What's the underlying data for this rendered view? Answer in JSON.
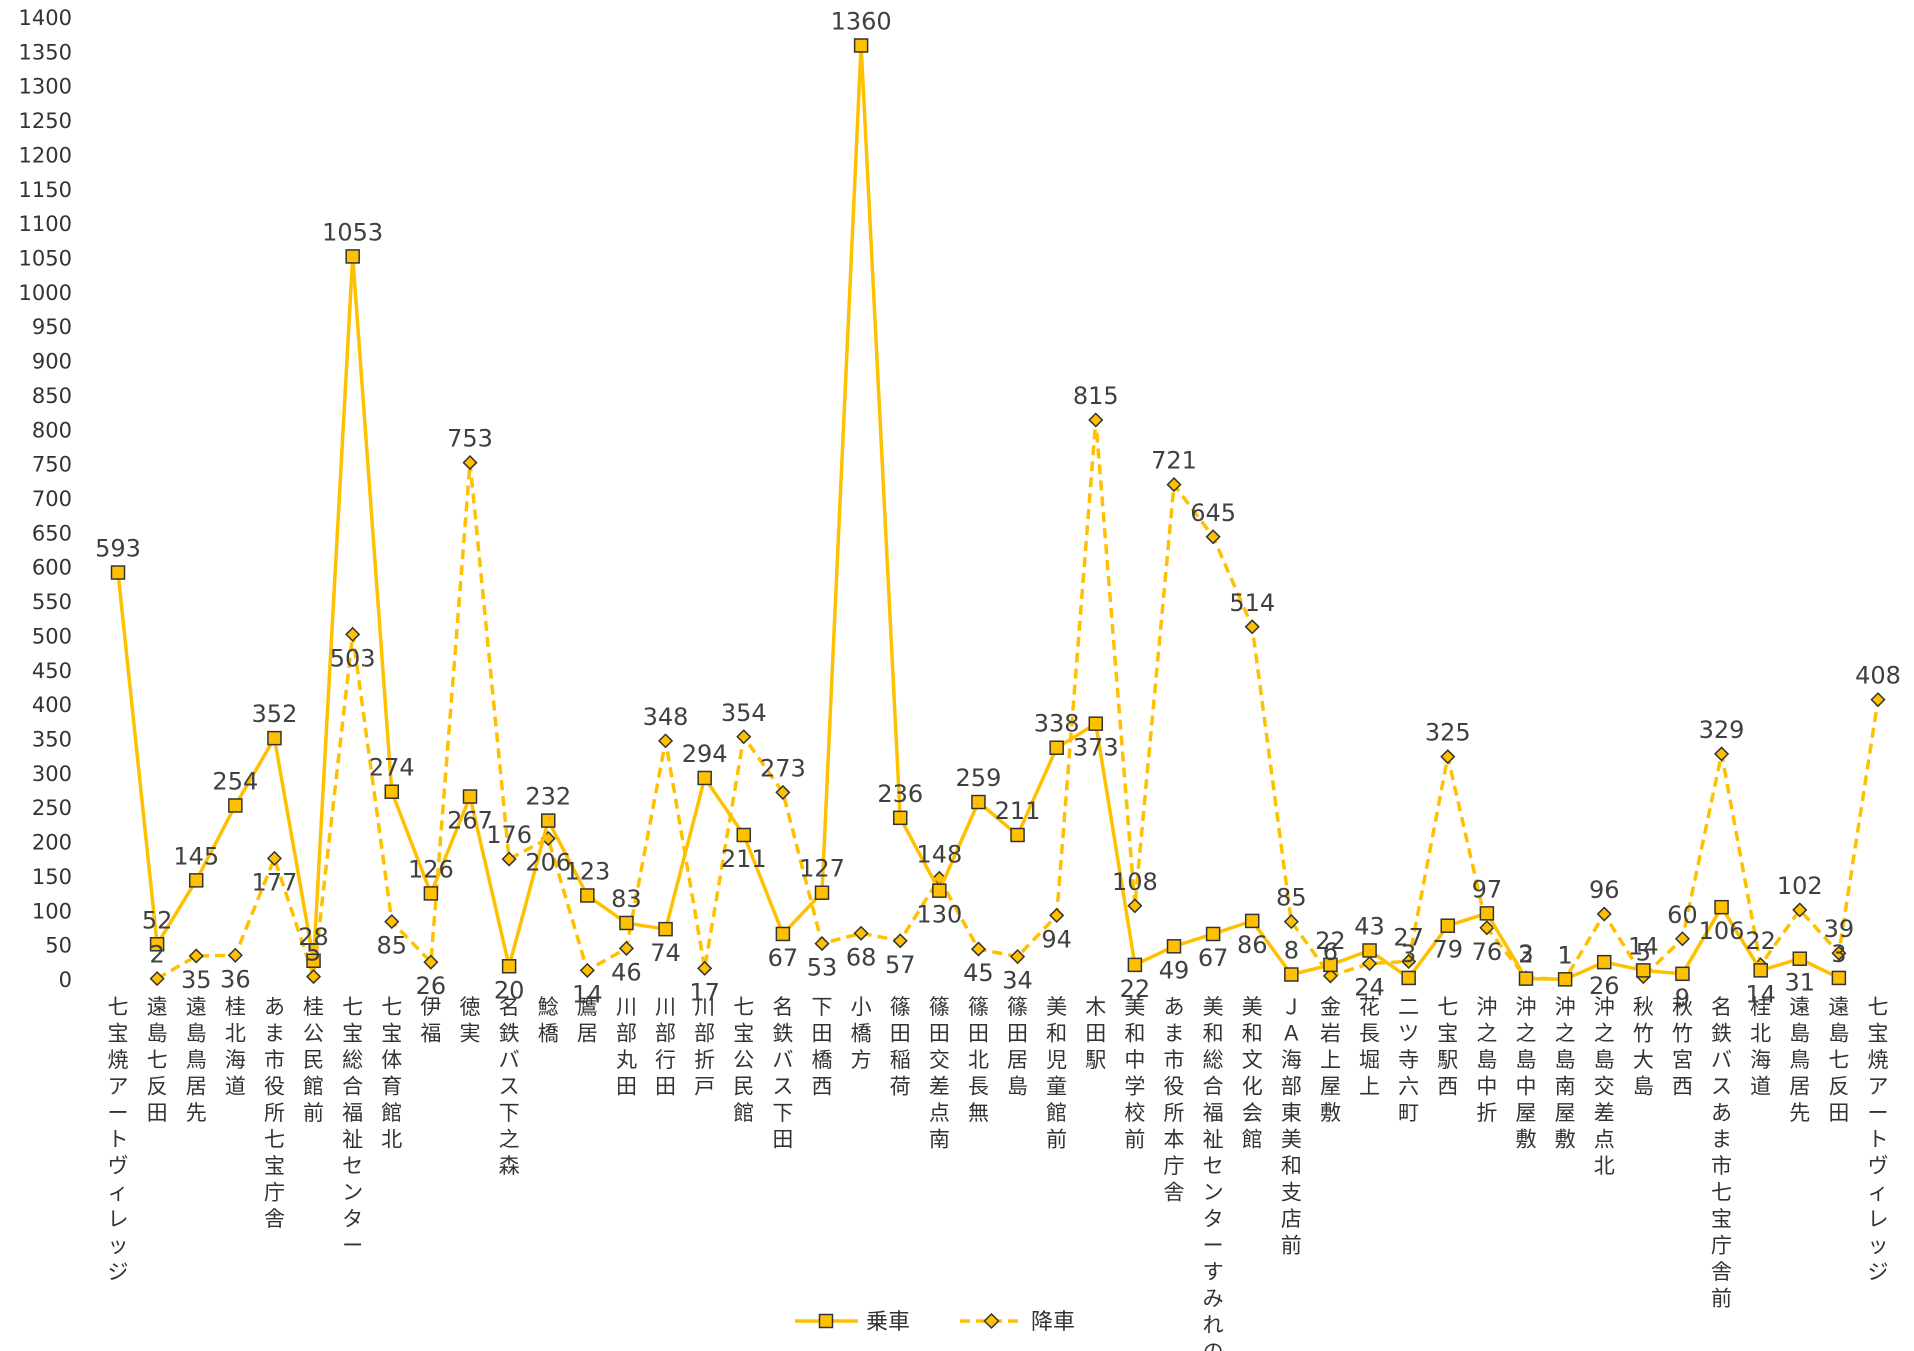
{
  "chart_data": {
    "type": "line",
    "title": "",
    "xlabel": "",
    "ylabel": "",
    "ylim": [
      0,
      1400
    ],
    "ytick_step": 50,
    "grid": false,
    "legend_position": "bottom",
    "categories": [
      "七宝焼アートヴィレッジ",
      "遠島七反田",
      "遠島鳥居先",
      "桂北海道",
      "あま市役所七宝庁舎",
      "桂公民館前",
      "七宝総合福祉センター",
      "七宝体育館北",
      "伊福",
      "徳実",
      "名鉄バス下之森",
      "鯰橋",
      "鷹居",
      "川部丸田",
      "川部行田",
      "川部折戸",
      "七宝公民館",
      "名鉄バス下田",
      "下田橋西",
      "小橋方",
      "篠田稲荷",
      "篠田交差点南",
      "篠田北長無",
      "篠田居島",
      "美和児童館前",
      "木田駅",
      "美和中学校前",
      "あま市役所本庁舎",
      "美和総合福祉センターすみれの里",
      "美和文化会館",
      "ＪＡ海部東美和支店前",
      "金岩上屋敷",
      "花長堀上",
      "二ツ寺六町",
      "七宝駅西",
      "沖之島中折",
      "沖之島中屋敷",
      "沖之島南屋敷",
      "沖之島交差点北",
      "秋竹大島",
      "秋竹宮西",
      "名鉄バスあま市七宝庁舎前",
      "桂北海道",
      "遠島鳥居先",
      "遠島七反田",
      "七宝焼アートヴィレッジ"
    ],
    "series": [
      {
        "name": "乗車",
        "style": "solid",
        "marker": "square",
        "color": "#FFC000",
        "values": [
          593,
          52,
          145,
          254,
          352,
          28,
          1053,
          274,
          126,
          267,
          20,
          232,
          123,
          83,
          74,
          294,
          211,
          67,
          127,
          1360,
          236,
          130,
          259,
          211,
          338,
          373,
          22,
          49,
          67,
          86,
          8,
          22,
          43,
          3,
          79,
          97,
          2,
          1,
          26,
          14,
          9,
          106,
          14,
          31,
          3,
          null
        ]
      },
      {
        "name": "降車",
        "style": "dashed",
        "marker": "diamond",
        "color": "#FFC000",
        "values": [
          null,
          2,
          35,
          36,
          177,
          5,
          503,
          85,
          26,
          753,
          176,
          206,
          14,
          46,
          348,
          17,
          354,
          273,
          53,
          68,
          57,
          148,
          45,
          34,
          94,
          815,
          108,
          721,
          645,
          514,
          85,
          6,
          24,
          27,
          325,
          76,
          3,
          1,
          96,
          5,
          60,
          329,
          22,
          102,
          39,
          408
        ]
      }
    ]
  },
  "legend": {
    "boarding_label": "乗車",
    "alighting_label": "降車"
  }
}
